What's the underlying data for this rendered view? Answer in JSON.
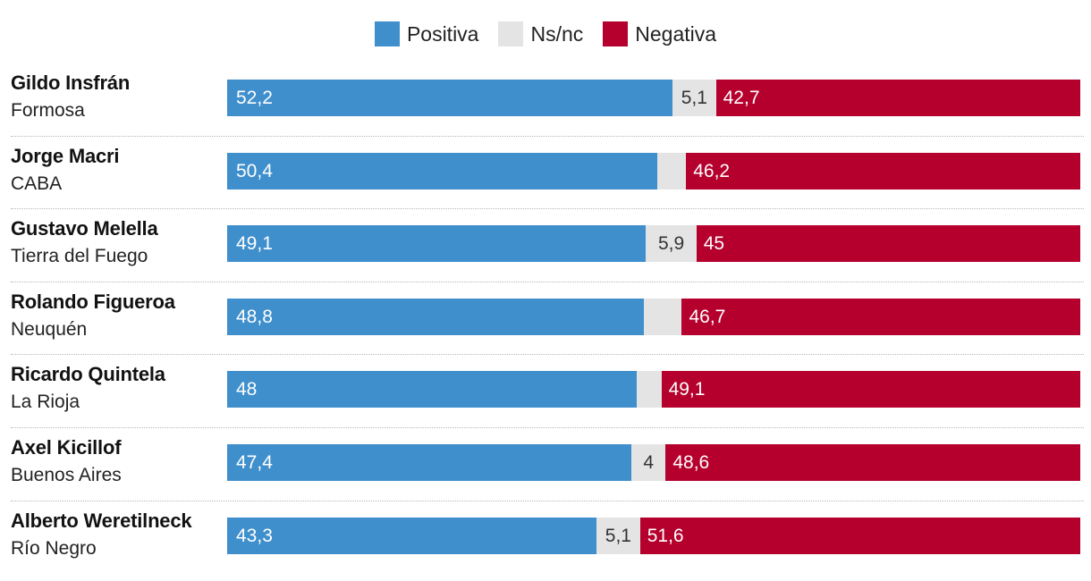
{
  "legend": [
    {
      "key": "pos",
      "label": "Positiva",
      "color": "#3f8fcd"
    },
    {
      "key": "ns",
      "label": "Ns/nc",
      "color": "#e4e4e4"
    },
    {
      "key": "neg",
      "label": "Negativa",
      "color": "#b5002d"
    }
  ],
  "chart_data": {
    "type": "bar",
    "orientation": "horizontal",
    "stacked": true,
    "normalized_total": 100,
    "categories": [
      {
        "name": "Gildo Insfrán",
        "region": "Formosa"
      },
      {
        "name": "Jorge Macri",
        "region": "CABA"
      },
      {
        "name": "Gustavo Melella",
        "region": "Tierra del Fuego"
      },
      {
        "name": "Rolando Figueroa",
        "region": "Neuquén"
      },
      {
        "name": "Ricardo Quintela",
        "region": "La Rioja"
      },
      {
        "name": "Axel Kicillof",
        "region": "Buenos Aires"
      },
      {
        "name": "Alberto Weretilneck",
        "region": "Río Negro"
      }
    ],
    "series": [
      {
        "name": "Positiva",
        "key": "pos",
        "values": [
          52.2,
          50.4,
          49.1,
          48.8,
          48.0,
          47.4,
          43.3
        ],
        "labels": [
          "52,2",
          "50,4",
          "49,1",
          "48,8",
          "48",
          "47,4",
          "43,3"
        ]
      },
      {
        "name": "Ns/nc",
        "key": "ns",
        "values": [
          5.1,
          3.4,
          5.9,
          4.5,
          2.9,
          4.0,
          5.1
        ],
        "labels": [
          "5,1",
          "",
          "5,9",
          "",
          "",
          "4",
          "5,1"
        ]
      },
      {
        "name": "Negativa",
        "key": "neg",
        "values": [
          42.7,
          46.2,
          45.0,
          46.7,
          49.1,
          48.6,
          51.6
        ],
        "labels": [
          "42,7",
          "46,2",
          "45",
          "46,7",
          "49,1",
          "48,6",
          "51,6"
        ]
      }
    ]
  }
}
